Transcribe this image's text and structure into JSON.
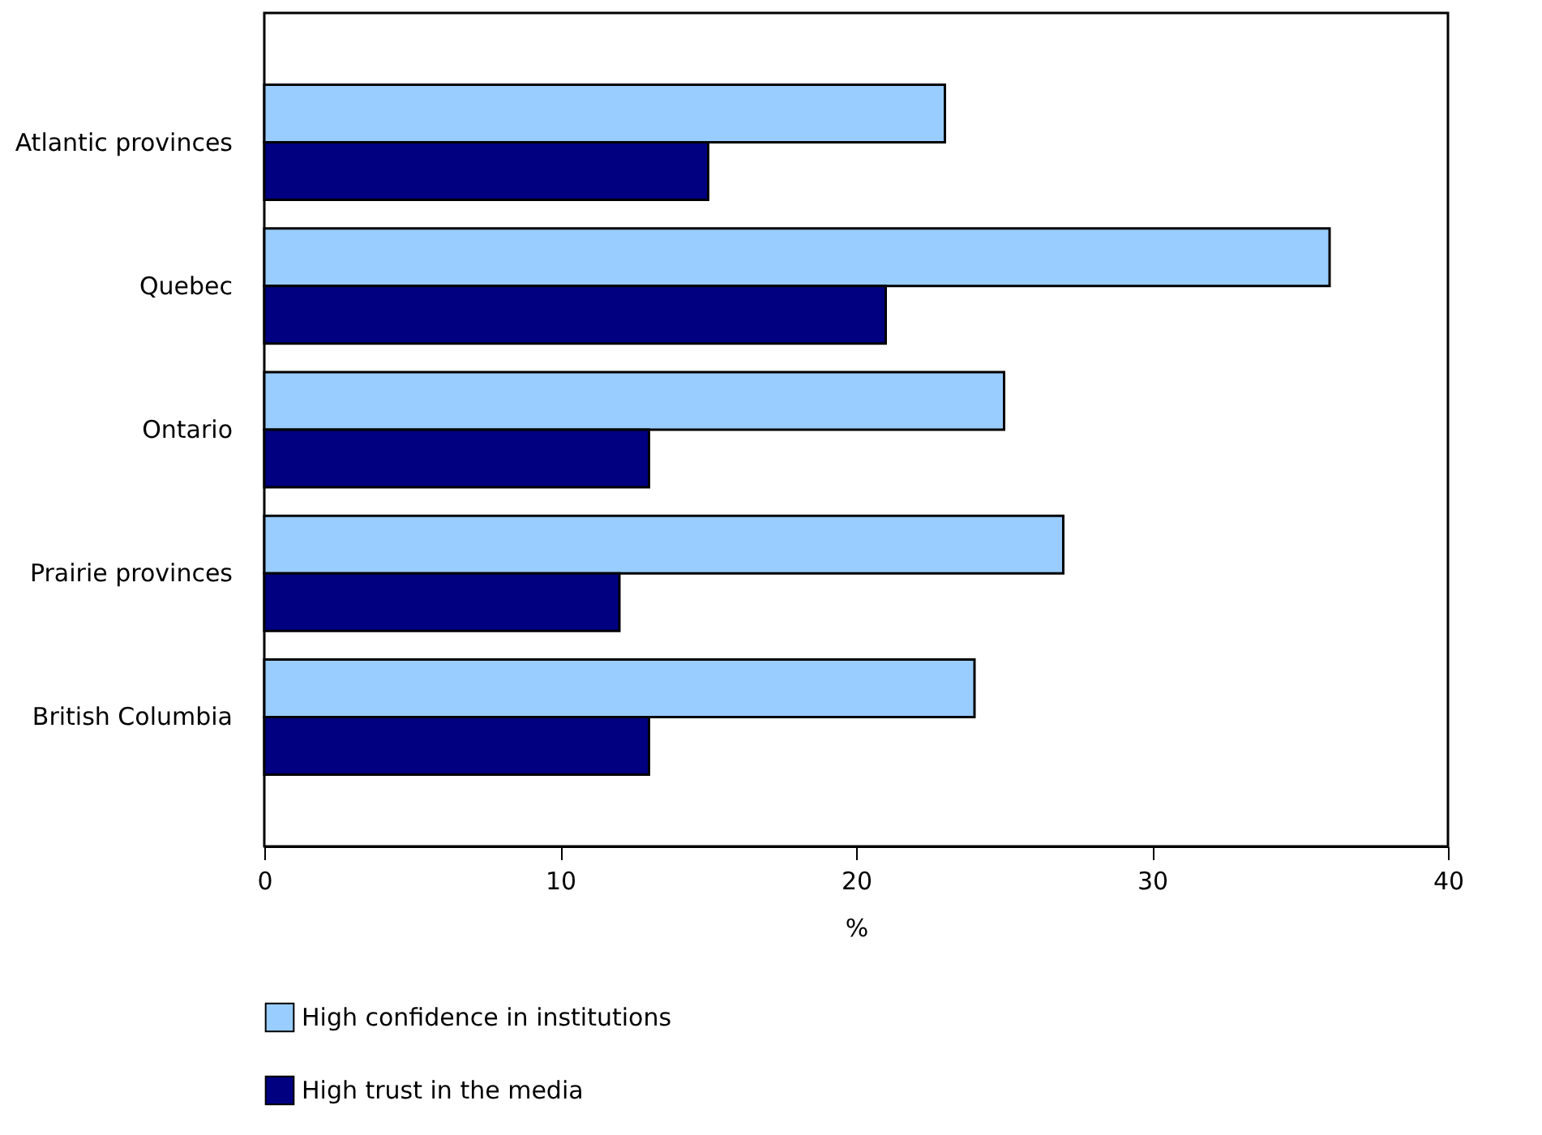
{
  "chart_data": {
    "type": "bar",
    "orientation": "horizontal",
    "xlabel": "%",
    "categories": [
      "Atlantic provinces",
      "Quebec",
      "Ontario",
      "Prairie provinces",
      "British Columbia"
    ],
    "series": [
      {
        "name": "High confidence in institutions",
        "color": "#99ccff",
        "values": [
          23,
          36,
          25,
          27,
          24
        ]
      },
      {
        "name": "High trust in the media",
        "color": "#000080",
        "values": [
          15,
          21,
          13,
          12,
          13
        ]
      }
    ],
    "xlim": [
      0,
      40
    ],
    "xticks": [
      0,
      10,
      20,
      30,
      40
    ],
    "grid": false,
    "legend": "bottom"
  }
}
